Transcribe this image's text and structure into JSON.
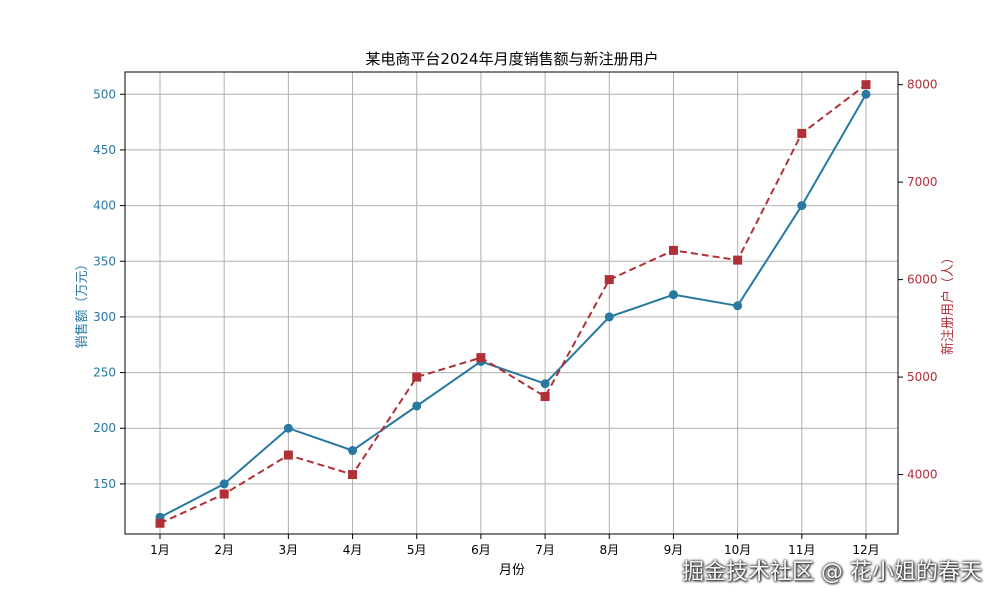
{
  "chart_data": {
    "type": "line",
    "title": "某电商平台2024年月度销售额与新注册用户",
    "xlabel": "月份",
    "categories": [
      "1月",
      "2月",
      "3月",
      "4月",
      "5月",
      "6月",
      "7月",
      "8月",
      "9月",
      "10月",
      "11月",
      "12月"
    ],
    "y_left": {
      "label": "销售额（万元）",
      "range": [
        105,
        520
      ],
      "ticks": [
        150,
        200,
        250,
        300,
        350,
        400,
        450,
        500
      ],
      "color": "#2878a0"
    },
    "y_right": {
      "label": "新注册用户（人）",
      "range": [
        3390,
        8130
      ],
      "ticks": [
        4000,
        5000,
        6000,
        7000,
        8000
      ],
      "color": "#b0303a"
    },
    "series": [
      {
        "axis": "left",
        "style": "solid",
        "marker": "circle",
        "color": "#2878a0",
        "values": [
          120,
          150,
          200,
          180,
          220,
          260,
          240,
          300,
          320,
          310,
          400,
          500
        ]
      },
      {
        "axis": "right",
        "style": "dashed",
        "marker": "square",
        "color": "#b03038",
        "values": [
          3500,
          3800,
          4200,
          4000,
          5000,
          5200,
          4800,
          6000,
          6300,
          6200,
          7500,
          8000
        ]
      }
    ],
    "grid": true
  },
  "watermark": "掘金技术社区 @ 花小姐的春天"
}
